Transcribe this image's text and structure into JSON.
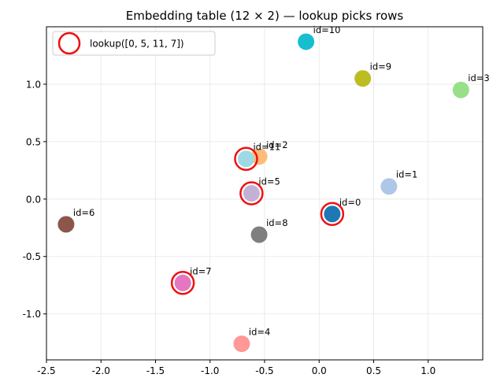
{
  "chart_data": {
    "type": "scatter",
    "title": "Embedding table (12 × 2) — lookup picks rows",
    "xlabel": "",
    "ylabel": "",
    "xlim": [
      -2.5,
      1.5
    ],
    "ylim": [
      -1.4,
      1.5
    ],
    "xticks": [
      "-2.5",
      "-2.0",
      "-1.5",
      "-1.0",
      "-0.5",
      "0.0",
      "0.5",
      "1.0"
    ],
    "yticks": [
      "-1.0",
      "-0.5",
      "0.0",
      "0.5",
      "1.0"
    ],
    "grid": true,
    "legend": {
      "position": "top-left",
      "label": "lookup([0, 5, 11, 7])"
    },
    "points": [
      {
        "label": "id=0",
        "x": 0.12,
        "y": -0.13,
        "color": "#1f77b4"
      },
      {
        "label": "id=1",
        "x": 0.64,
        "y": 0.11,
        "color": "#aec7e8"
      },
      {
        "label": "id=2",
        "x": -0.55,
        "y": 0.37,
        "color": "#ffbb78"
      },
      {
        "label": "id=3",
        "x": 1.3,
        "y": 0.95,
        "color": "#98df8a"
      },
      {
        "label": "id=4",
        "x": -0.71,
        "y": -1.26,
        "color": "#ff9896"
      },
      {
        "label": "id=5",
        "x": -0.62,
        "y": 0.05,
        "color": "#c5b0d5"
      },
      {
        "label": "id=6",
        "x": -2.32,
        "y": -0.22,
        "color": "#8c564b"
      },
      {
        "label": "id=7",
        "x": -1.25,
        "y": -0.73,
        "color": "#e377c2"
      },
      {
        "label": "id=8",
        "x": -0.55,
        "y": -0.31,
        "color": "#7f7f7f"
      },
      {
        "label": "id=9",
        "x": 0.4,
        "y": 1.05,
        "color": "#bcbd22"
      },
      {
        "label": "id=10",
        "x": -0.12,
        "y": 1.37,
        "color": "#17becf"
      },
      {
        "label": "id=11",
        "x": -0.67,
        "y": 0.35,
        "color": "#9edae5"
      }
    ],
    "highlighted": [
      "id=0",
      "id=5",
      "id=11",
      "id=7"
    ],
    "highlight_color": "#ee1111"
  }
}
